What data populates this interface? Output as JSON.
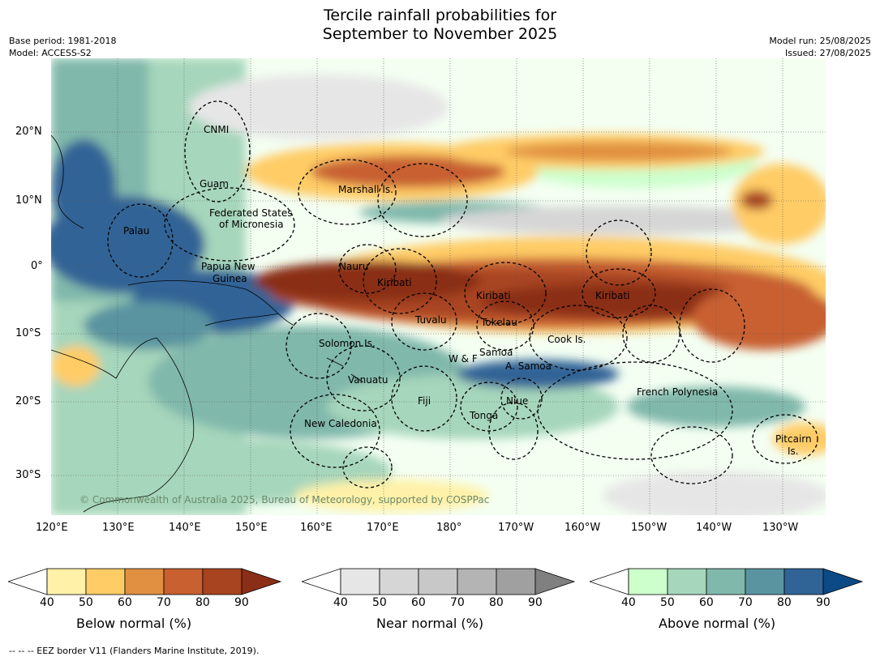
{
  "header": {
    "title_line1": "Tercile rainfall probabilities for",
    "title_line2": "September to November 2025",
    "base_period": "Base period: 1981-2018",
    "model": "Model: ACCESS-S2",
    "model_run": "Model run: 25/08/2025",
    "issued": "Issued: 27/08/2025"
  },
  "map": {
    "lon_labels": [
      "120°E",
      "130°E",
      "140°E",
      "150°E",
      "160°E",
      "170°E",
      "180°",
      "170°W",
      "160°W",
      "150°W",
      "140°W",
      "130°W"
    ],
    "lat_labels": [
      "20°N",
      "10°N",
      "0°",
      "10°S",
      "20°S",
      "30°S"
    ],
    "copyright": "© Commonwealth of Australia 2025, Bureau of Meteorology, supported by COSPPac",
    "regions": [
      {
        "name": "cnmi",
        "text": "CNMI"
      },
      {
        "name": "guam",
        "text": "Guam"
      },
      {
        "name": "marshall",
        "text": "Marshall Is."
      },
      {
        "name": "fsm1",
        "text": "Federated States"
      },
      {
        "name": "fsm2",
        "text": "of Micronesia"
      },
      {
        "name": "palau",
        "text": "Palau"
      },
      {
        "name": "png1",
        "text": "Papua New"
      },
      {
        "name": "png2",
        "text": "Guinea"
      },
      {
        "name": "nauru",
        "text": "Nauru"
      },
      {
        "name": "kiribati-w",
        "text": "Kiribati"
      },
      {
        "name": "kiribati-c",
        "text": "Kiribati"
      },
      {
        "name": "kiribati-e",
        "text": "Kiribati"
      },
      {
        "name": "tuvalu",
        "text": "Tuvalu"
      },
      {
        "name": "tokelau",
        "text": "Tokelau"
      },
      {
        "name": "cook",
        "text": "Cook Is."
      },
      {
        "name": "solomon",
        "text": "Solomon Is."
      },
      {
        "name": "samoa",
        "text": "Samoa"
      },
      {
        "name": "wf",
        "text": "W & F"
      },
      {
        "name": "asamoa",
        "text": "A. Samoa"
      },
      {
        "name": "vanuatu",
        "text": "Vanuatu"
      },
      {
        "name": "fiji",
        "text": "Fiji"
      },
      {
        "name": "niue",
        "text": "Niue"
      },
      {
        "name": "tonga",
        "text": "Tonga"
      },
      {
        "name": "frpoly",
        "text": "French Polynesia"
      },
      {
        "name": "newcal",
        "text": "New Caledonia"
      },
      {
        "name": "pitcairn1",
        "text": "Pitcairn"
      },
      {
        "name": "pitcairn2",
        "text": "Is."
      }
    ]
  },
  "colorbars": [
    {
      "title": "Below normal (%)",
      "ticks": [
        "40",
        "50",
        "60",
        "70",
        "80",
        "90"
      ],
      "colors": [
        "#ffffff",
        "#fff1a8",
        "#ffcc66",
        "#e09040",
        "#c86030",
        "#a84420",
        "#8a2e18"
      ]
    },
    {
      "title": "Near normal (%)",
      "ticks": [
        "40",
        "50",
        "60",
        "70",
        "80",
        "90"
      ],
      "colors": [
        "#ffffff",
        "#e6e6e6",
        "#d6d6d6",
        "#c8c8c8",
        "#b4b4b4",
        "#a0a0a0",
        "#808080"
      ]
    },
    {
      "title": "Above normal (%)",
      "ticks": [
        "40",
        "50",
        "60",
        "70",
        "80",
        "90"
      ],
      "colors": [
        "#ffffff",
        "#ccffcc",
        "#a6d6bb",
        "#80b8ab",
        "#5a94a0",
        "#306496",
        "#0c4a86"
      ]
    }
  ],
  "footnote": "-- -- -- EEZ border V11 (Flanders Marine Institute, 2019)."
}
